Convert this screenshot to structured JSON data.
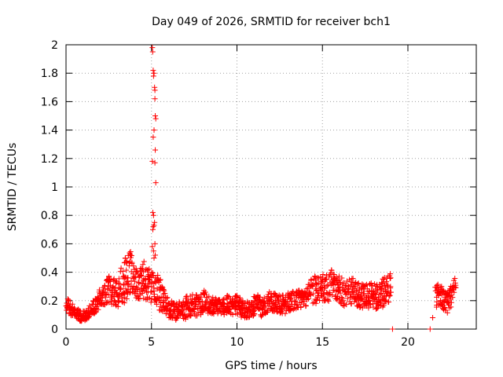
{
  "chart_data": {
    "type": "scatter",
    "title": "Day 049 of 2026, SRMTID for receiver bch1",
    "xlabel": "GPS time / hours",
    "ylabel": "SRMTID / TECUs",
    "xlim": [
      0,
      24
    ],
    "ylim": [
      0,
      2
    ],
    "xticks": [
      0,
      5,
      10,
      15,
      20
    ],
    "xtick_labels": [
      "0",
      "5",
      "10",
      "15",
      "20"
    ],
    "yticks": [
      0,
      0.2,
      0.4,
      0.6,
      0.8,
      1,
      1.2,
      1.4,
      1.6,
      1.8,
      2
    ],
    "ytick_labels": [
      "0",
      "0.2",
      "0.4",
      "0.6",
      "0.8",
      "1",
      "1.2",
      "1.4",
      "1.6",
      "1.8",
      "2"
    ],
    "grid": true,
    "marker": "+",
    "series": [
      {
        "name": "bch1",
        "color": "#ff0000",
        "segments": [
          {
            "x": [
              0.0,
              0.25,
              0.5,
              0.75,
              1.0,
              1.25,
              1.5,
              1.75,
              2.0,
              2.25,
              2.5,
              2.75,
              3.0,
              3.25,
              3.5,
              3.75,
              4.0,
              4.25,
              4.5,
              4.75,
              5.0,
              5.25,
              5.5,
              5.75,
              6.0,
              6.25,
              6.5,
              6.75,
              7.0,
              7.25,
              7.5,
              7.75,
              8.0,
              8.25,
              8.5,
              8.75,
              9.0,
              9.25,
              9.5,
              9.75,
              10.0,
              10.25,
              10.5,
              10.75,
              11.0,
              11.25,
              11.5,
              11.75,
              12.0,
              12.25,
              12.5,
              12.75,
              13.0,
              13.25,
              13.5,
              13.75,
              14.0,
              14.25,
              14.5,
              14.75,
              15.0,
              15.25,
              15.5,
              15.75,
              16.0,
              16.25,
              16.5,
              16.75,
              17.0,
              17.25,
              17.5,
              17.75,
              18.0,
              18.25,
              18.5,
              18.75,
              19.0
            ],
            "y": [
              0.18,
              0.15,
              0.12,
              0.1,
              0.09,
              0.11,
              0.14,
              0.18,
              0.22,
              0.25,
              0.28,
              0.27,
              0.25,
              0.3,
              0.35,
              0.4,
              0.3,
              0.32,
              0.35,
              0.33,
              0.3,
              0.28,
              0.25,
              0.18,
              0.15,
              0.13,
              0.12,
              0.14,
              0.15,
              0.17,
              0.18,
              0.16,
              0.2,
              0.18,
              0.17,
              0.16,
              0.15,
              0.16,
              0.17,
              0.16,
              0.18,
              0.15,
              0.14,
              0.13,
              0.16,
              0.17,
              0.15,
              0.18,
              0.2,
              0.19,
              0.18,
              0.17,
              0.19,
              0.2,
              0.2,
              0.21,
              0.22,
              0.25,
              0.28,
              0.27,
              0.3,
              0.28,
              0.32,
              0.3,
              0.28,
              0.25,
              0.26,
              0.27,
              0.25,
              0.24,
              0.22,
              0.23,
              0.24,
              0.22,
              0.25,
              0.28,
              0.3
            ],
            "spread": [
              0.05,
              0.05,
              0.04,
              0.04,
              0.04,
              0.04,
              0.05,
              0.06,
              0.07,
              0.08,
              0.1,
              0.1,
              0.1,
              0.14,
              0.16,
              0.16,
              0.12,
              0.12,
              0.13,
              0.14,
              0.12,
              0.12,
              0.12,
              0.08,
              0.07,
              0.06,
              0.06,
              0.07,
              0.08,
              0.08,
              0.08,
              0.08,
              0.08,
              0.07,
              0.07,
              0.06,
              0.06,
              0.06,
              0.07,
              0.06,
              0.07,
              0.07,
              0.06,
              0.06,
              0.07,
              0.07,
              0.07,
              0.07,
              0.07,
              0.07,
              0.07,
              0.07,
              0.07,
              0.07,
              0.07,
              0.07,
              0.07,
              0.08,
              0.1,
              0.1,
              0.1,
              0.1,
              0.1,
              0.1,
              0.1,
              0.09,
              0.09,
              0.09,
              0.09,
              0.09,
              0.09,
              0.09,
              0.09,
              0.09,
              0.1,
              0.1,
              0.1
            ],
            "step": 0.025
          },
          {
            "x": [
              21.6,
              21.85,
              22.1,
              22.35,
              22.6,
              22.8
            ],
            "y": [
              0.22,
              0.25,
              0.2,
              0.18,
              0.25,
              0.32
            ],
            "spread": [
              0.08,
              0.08,
              0.07,
              0.07,
              0.08,
              0.05
            ],
            "step": 0.025
          }
        ],
        "spike": {
          "x": [
            5.05,
            5.07,
            5.1,
            5.12,
            5.15,
            5.18,
            5.2,
            5.2,
            5.22,
            5.25,
            5.15,
            5.1,
            5.05,
            5.2,
            5.22,
            5.25,
            5.08,
            5.12,
            5.18,
            5.1,
            5.15,
            5.08,
            5.2,
            5.12,
            5.05,
            5.22,
            5.15
          ],
          "y": [
            1.98,
            1.95,
            1.82,
            1.78,
            1.8,
            1.7,
            1.68,
            1.62,
            1.5,
            1.48,
            1.4,
            1.35,
            1.18,
            1.17,
            1.26,
            1.03,
            0.82,
            0.8,
            0.75,
            0.72,
            0.73,
            0.7,
            0.6,
            0.55,
            0.58,
            0.52,
            0.5
          ]
        },
        "outliers": {
          "x": [
            19.1,
            21.3,
            21.45
          ],
          "y": [
            0.0,
            0.0,
            0.08
          ]
        }
      }
    ]
  }
}
